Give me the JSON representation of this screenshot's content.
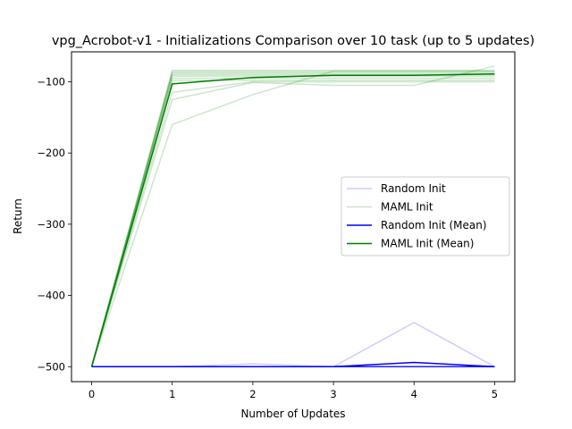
{
  "chart_data": {
    "type": "line",
    "title": "vpg_Acrobot-v1 - Initializations Comparison over 10 task (up to 5 updates)",
    "xlabel": "Number of Updates",
    "ylabel": "Return",
    "xlim": [
      -0.25,
      5.25
    ],
    "ylim": [
      -521,
      -58
    ],
    "x": [
      0,
      1,
      2,
      3,
      4,
      5
    ],
    "xticks": [
      0,
      1,
      2,
      3,
      4,
      5
    ],
    "xtick_labels": [
      "0",
      "1",
      "2",
      "3",
      "4",
      "5"
    ],
    "yticks": [
      -500,
      -400,
      -300,
      -200,
      -100
    ],
    "ytick_labels": [
      "−500",
      "−400",
      "−300",
      "−200",
      "−100"
    ],
    "grid": false,
    "legend_position": "center-right",
    "colors": {
      "random": "#0000ff",
      "maml": "#008000"
    },
    "legend": [
      {
        "label": "Random Init",
        "color": "#0000ff",
        "alpha": 0.2,
        "width": 1.5
      },
      {
        "label": "MAML Init",
        "color": "#008000",
        "alpha": 0.2,
        "width": 1.5
      },
      {
        "label": "Random Init (Mean)",
        "color": "#0000ff",
        "alpha": 1,
        "width": 1.5
      },
      {
        "label": "MAML Init (Mean)",
        "color": "#008000",
        "alpha": 1,
        "width": 1.5
      }
    ],
    "random_runs": [
      [
        -500,
        -500,
        -500,
        -500,
        -500,
        -500
      ],
      [
        -500,
        -500,
        -500,
        -500,
        -500,
        -500
      ],
      [
        -500,
        -500,
        -500,
        -500,
        -500,
        -500
      ],
      [
        -500,
        -500,
        -500,
        -500,
        -500,
        -500
      ],
      [
        -500,
        -500,
        -500,
        -500,
        -500,
        -500
      ],
      [
        -500,
        -500,
        -500,
        -500,
        -500,
        -500
      ],
      [
        -500,
        -500,
        -500,
        -500,
        -500,
        -500
      ],
      [
        -500,
        -500,
        -500,
        -500,
        -500,
        -500
      ],
      [
        -500,
        -500,
        -496,
        -500,
        -438,
        -500
      ],
      [
        -500,
        -500,
        -500,
        -500,
        -500,
        -500
      ]
    ],
    "maml_runs": [
      [
        -500,
        -160,
        -118,
        -85,
        -85,
        -85
      ],
      [
        -500,
        -125,
        -101,
        -105,
        -105,
        -78
      ],
      [
        -500,
        -115,
        -100,
        -100,
        -100,
        -100
      ],
      [
        -500,
        -98,
        -98,
        -98,
        -98,
        -98
      ],
      [
        -500,
        -95,
        -95,
        -95,
        -95,
        -95
      ],
      [
        -500,
        -92,
        -92,
        -92,
        -92,
        -92
      ],
      [
        -500,
        -90,
        -90,
        -90,
        -90,
        -90
      ],
      [
        -500,
        -88,
        -88,
        -88,
        -88,
        -88
      ],
      [
        -500,
        -86,
        -86,
        -86,
        -86,
        -86
      ],
      [
        -500,
        -84,
        -84,
        -84,
        -84,
        -84
      ]
    ],
    "series": [
      {
        "name": "Random Init (Mean)",
        "values": [
          -500,
          -500,
          -500,
          -500,
          -494,
          -500
        ]
      },
      {
        "name": "MAML Init (Mean)",
        "values": [
          -500,
          -103,
          -94,
          -91,
          -91,
          -89
        ]
      }
    ]
  }
}
